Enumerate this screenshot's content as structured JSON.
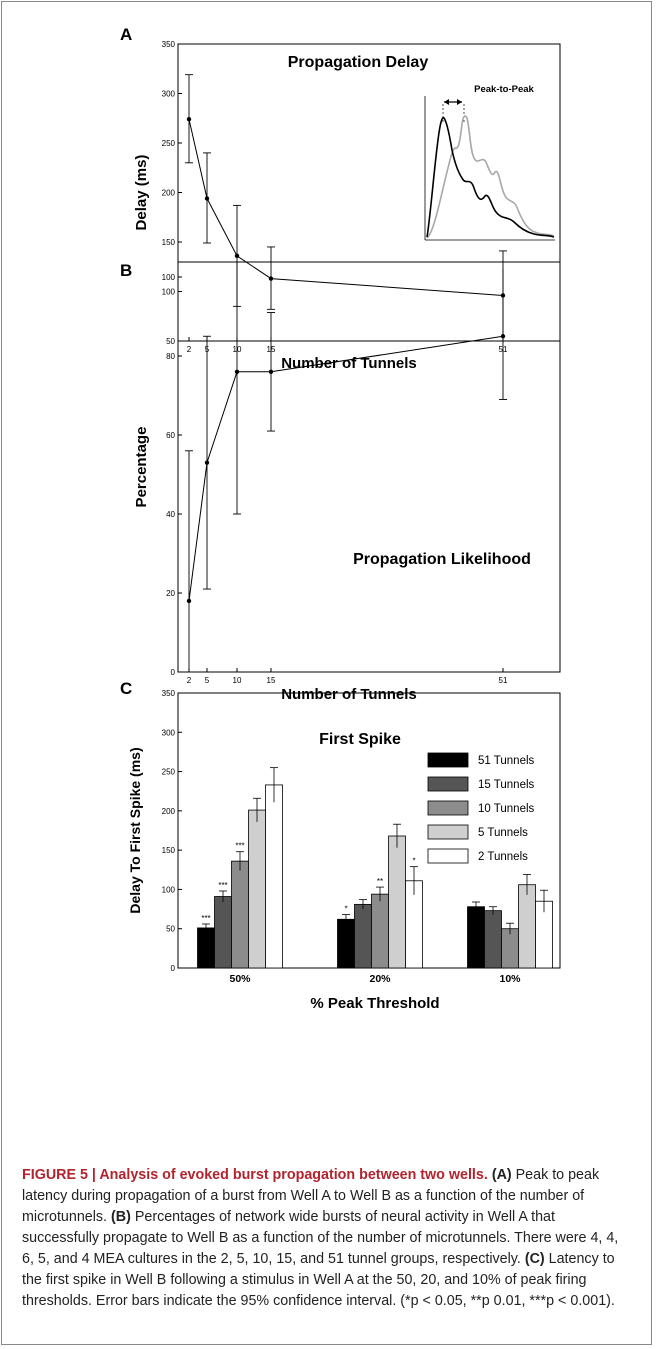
{
  "chart_data": [
    {
      "panel": "A",
      "type": "line",
      "title": "Propagation Delay",
      "xlabel": "Number of Tunnels",
      "ylabel": "Delay (ms)",
      "ylim": [
        50,
        350
      ],
      "yticks": [
        "50",
        "100",
        "150",
        "200",
        "250",
        "300",
        "350"
      ],
      "xticks": [
        "2",
        "5",
        "10",
        "15",
        "51"
      ],
      "x": [
        2,
        5,
        10,
        15,
        51
      ],
      "y": [
        274,
        194,
        136,
        113,
        96
      ],
      "err_low": [
        230,
        149,
        85,
        82,
        50
      ],
      "err_high": [
        319,
        240,
        187,
        145,
        141
      ],
      "inset": {
        "label": "Peak-to-Peak"
      }
    },
    {
      "panel": "B",
      "type": "line",
      "title": "Propagation Likelihood",
      "xlabel": "Number of Tunnels",
      "ylabel": "Percentage",
      "ylim": [
        0,
        100
      ],
      "yticks": [
        "0",
        "20",
        "40",
        "60",
        "80",
        "100"
      ],
      "xticks": [
        "2",
        "5",
        "10",
        "15",
        "51"
      ],
      "x": [
        2,
        5,
        10,
        15,
        51
      ],
      "y": [
        18,
        53,
        76,
        76,
        85
      ],
      "err_low": [
        0,
        21,
        40,
        61,
        69
      ],
      "err_high": [
        56,
        85,
        104,
        91,
        102
      ]
    },
    {
      "panel": "C",
      "type": "bar",
      "title": "First Spike",
      "xlabel": "% Peak Threshold",
      "ylabel": "Delay To First Spike (ms)",
      "ylim": [
        0,
        350
      ],
      "yticks": [
        "0",
        "50",
        "100",
        "150",
        "200",
        "250",
        "300",
        "350"
      ],
      "categories": [
        "50%",
        "20%",
        "10%"
      ],
      "series": [
        {
          "name": "51 Tunnels",
          "values": [
            51,
            62,
            78
          ],
          "err": [
            5,
            6,
            6
          ],
          "sig": [
            "***",
            "*",
            ""
          ]
        },
        {
          "name": "15 Tunnels",
          "values": [
            91,
            81,
            73
          ],
          "err": [
            7,
            6,
            5
          ],
          "sig": [
            "***",
            "",
            ""
          ]
        },
        {
          "name": "10 Tunnels",
          "values": [
            136,
            94,
            50
          ],
          "err": [
            12,
            9,
            7
          ],
          "sig": [
            "***",
            "**",
            ""
          ]
        },
        {
          "name": "5 Tunnels",
          "values": [
            201,
            168,
            106
          ],
          "err": [
            15,
            15,
            13
          ],
          "sig": [
            "",
            "",
            ""
          ]
        },
        {
          "name": "2 Tunnels",
          "values": [
            233,
            111,
            85
          ],
          "err": [
            22,
            18,
            14
          ],
          "sig": [
            "",
            "*",
            ""
          ]
        }
      ],
      "colors": [
        "#000000",
        "#555555",
        "#8c8c8c",
        "#cfcfcf",
        "#ffffff"
      ],
      "legend_placement": "top-right"
    }
  ],
  "caption": {
    "title": "FIGURE 5 | Analysis of evoked burst propagation between two wells.",
    "a_label": "(A)",
    "a_text": " Peak to peak latency during propagation of a burst from Well A to Well B as a function of the number of microtunnels. ",
    "b_label": "(B)",
    "b_text": " Percentages of network wide bursts of neural activity in Well A that successfully propagate to Well B as a function of the number of microtunnels. There were 4, 4, 6, 5, and 4 MEA cultures in the 2, 5, 10, 15, and 51 tunnel groups, respectively. ",
    "c_label": "(C)",
    "c_text": " Latency to the first spike in Well B following a stimulus in Well A at the 50, 20, and 10% of peak firing thresholds. Error bars indicate the 95% confidence interval. (*p < 0.05, **p 0.01, ***p < 0.001)."
  }
}
